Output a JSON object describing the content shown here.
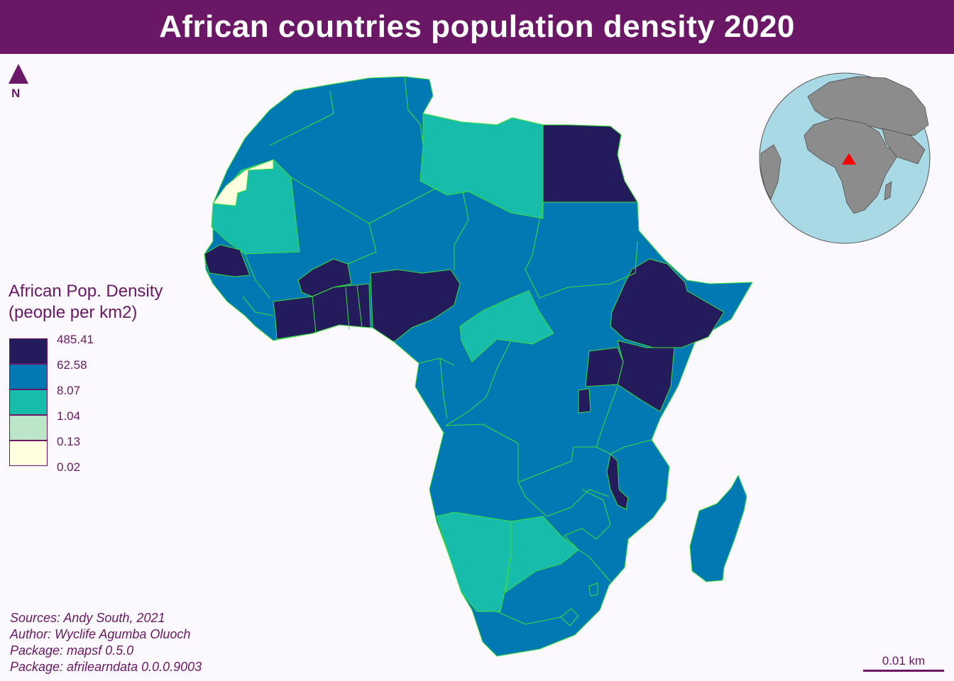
{
  "title": "African countries population density 2020",
  "north_arrow": {
    "label": "N",
    "icon": "north-arrow-icon"
  },
  "legend": {
    "title_line1": "African Pop. Density",
    "title_line2": "(people per km2)",
    "classes": [
      {
        "break": "485.41",
        "color": "#231b5b"
      },
      {
        "break": "62.58",
        "color": "#0279b2"
      },
      {
        "break": "8.07",
        "color": "#17bcab"
      },
      {
        "break": "1.04",
        "color": "#bde6c8"
      },
      {
        "break": "0.13",
        "color": "#ffffe0"
      },
      {
        "break": "0.02",
        "color": null
      }
    ]
  },
  "credits": {
    "line1": "Sources: Andy South, 2021",
    "line2": "Author: Wyclife Agumba Oluoch",
    "line3": "Package: mapsf 0.5.0",
    "line4": "Package: afrilearndata 0.0.0.9003"
  },
  "scalebar": {
    "label": "0.01 km"
  },
  "colors": {
    "title_bar": "#6a1866",
    "accent_text": "#6a1866",
    "background": "#fbf9fd",
    "border": "#3dde3d",
    "globe_ocean": "#aad9e6",
    "globe_land": "#8c8c8c",
    "locator_marker": "#ff0000"
  }
}
